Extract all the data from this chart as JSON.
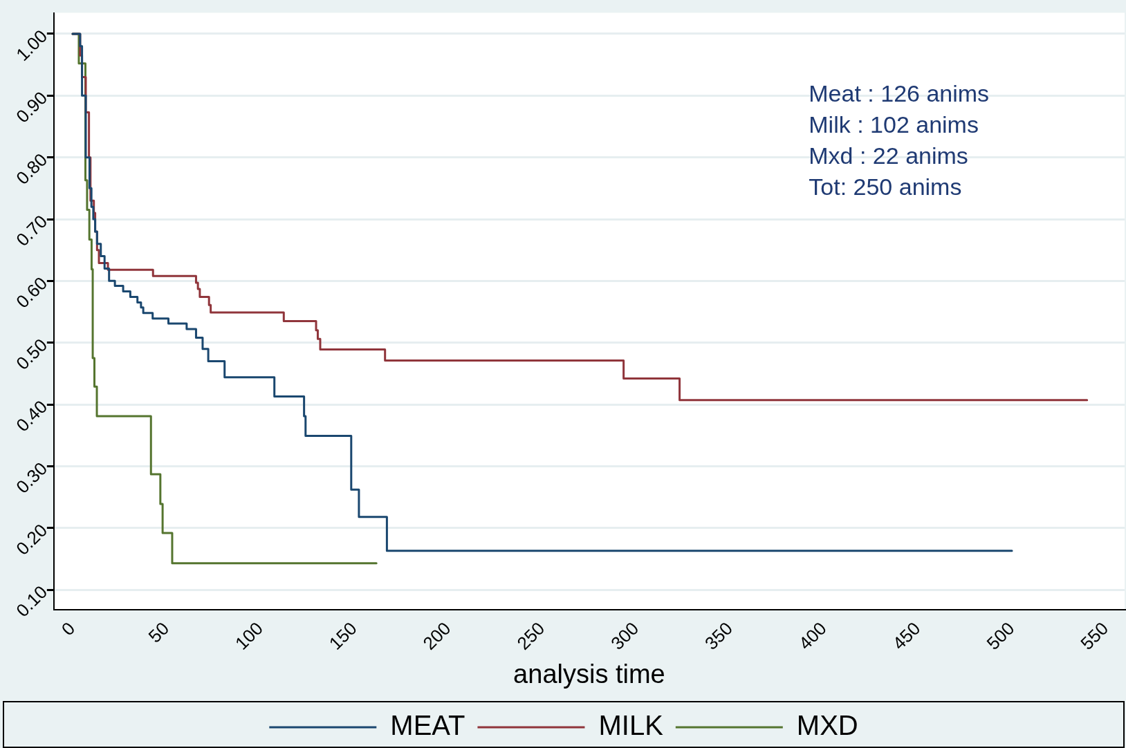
{
  "chart_data": {
    "type": "step",
    "xlabel": "analysis time",
    "xlim": [
      -10,
      560
    ],
    "xticks": [
      0,
      50,
      100,
      150,
      200,
      250,
      300,
      350,
      400,
      450,
      500,
      550
    ],
    "ylim": [
      0.068,
      1.034
    ],
    "yticks": [
      {
        "value": 0.1,
        "label": "0.10"
      },
      {
        "value": 0.2,
        "label": "0.20"
      },
      {
        "value": 0.3,
        "label": "0.30"
      },
      {
        "value": 0.4,
        "label": "0.40"
      },
      {
        "value": 0.5,
        "label": "0.50"
      },
      {
        "value": 0.6,
        "label": "0.60"
      },
      {
        "value": 0.7,
        "label": "0.70"
      },
      {
        "value": 0.8,
        "label": "0.80"
      },
      {
        "value": 0.9,
        "label": "0.90"
      },
      {
        "value": 1,
        "label": "1.00"
      }
    ],
    "grid": "y",
    "legend": "bottom",
    "line_style": "solid",
    "marker": "none",
    "annotations": [
      "Meat : 126 anims",
      "Milk : 102 anims",
      "Mxd : 22 anims",
      "Tot: 250 anims"
    ],
    "series": [
      {
        "name": "MEAT",
        "color": "#1a476f",
        "x": [
          0,
          4,
          5,
          7,
          9,
          10,
          11,
          12,
          13,
          15,
          17,
          19.4,
          22.5,
          26.9,
          30.7,
          34.5,
          36.4,
          37.6,
          42.6,
          51,
          60.7,
          65.7,
          69.2,
          72.2,
          80.9,
          107.4,
          123.2,
          124,
          148.3,
          152.4,
          167.3,
          500
        ],
        "values": [
          1,
          0.98,
          0.9,
          0.8,
          0.75,
          0.72,
          0.7,
          0.68,
          0.66,
          0.64,
          0.62,
          0.6,
          0.592,
          0.583,
          0.574,
          0.565,
          0.557,
          0.548,
          0.539,
          0.531,
          0.522,
          0.508,
          0.49,
          0.47,
          0.444,
          0.413,
          0.381,
          0.349,
          0.262,
          0.218,
          0.163,
          0.163
        ]
      },
      {
        "name": "MILK",
        "color": "#90353b",
        "x": [
          0,
          4,
          5,
          7,
          8.7,
          9.5,
          11.3,
          12,
          13,
          14,
          18.8,
          42.8,
          65.7,
          66.7,
          67.7,
          72.6,
          73.5,
          112.4,
          129.6,
          130.5,
          131.8,
          166.3,
          293.3,
          323.1,
          540
        ],
        "values": [
          1,
          0.965,
          0.93,
          0.873,
          0.8,
          0.73,
          0.71,
          0.68,
          0.65,
          0.629,
          0.618,
          0.608,
          0.597,
          0.587,
          0.574,
          0.561,
          0.549,
          0.535,
          0.52,
          0.506,
          0.489,
          0.471,
          0.442,
          0.407,
          0.407
        ]
      },
      {
        "name": "MXD",
        "color": "#55752f",
        "x": [
          0,
          3.3,
          6.8,
          7.7,
          8.9,
          10.1,
          10.7,
          11.6,
          12.9,
          41.7,
          46.7,
          47.9,
          53,
          161.7
        ],
        "values": [
          1,
          0.952,
          0.763,
          0.715,
          0.667,
          0.619,
          0.475,
          0.429,
          0.381,
          0.287,
          0.239,
          0.192,
          0.143,
          0.143
        ]
      }
    ]
  }
}
